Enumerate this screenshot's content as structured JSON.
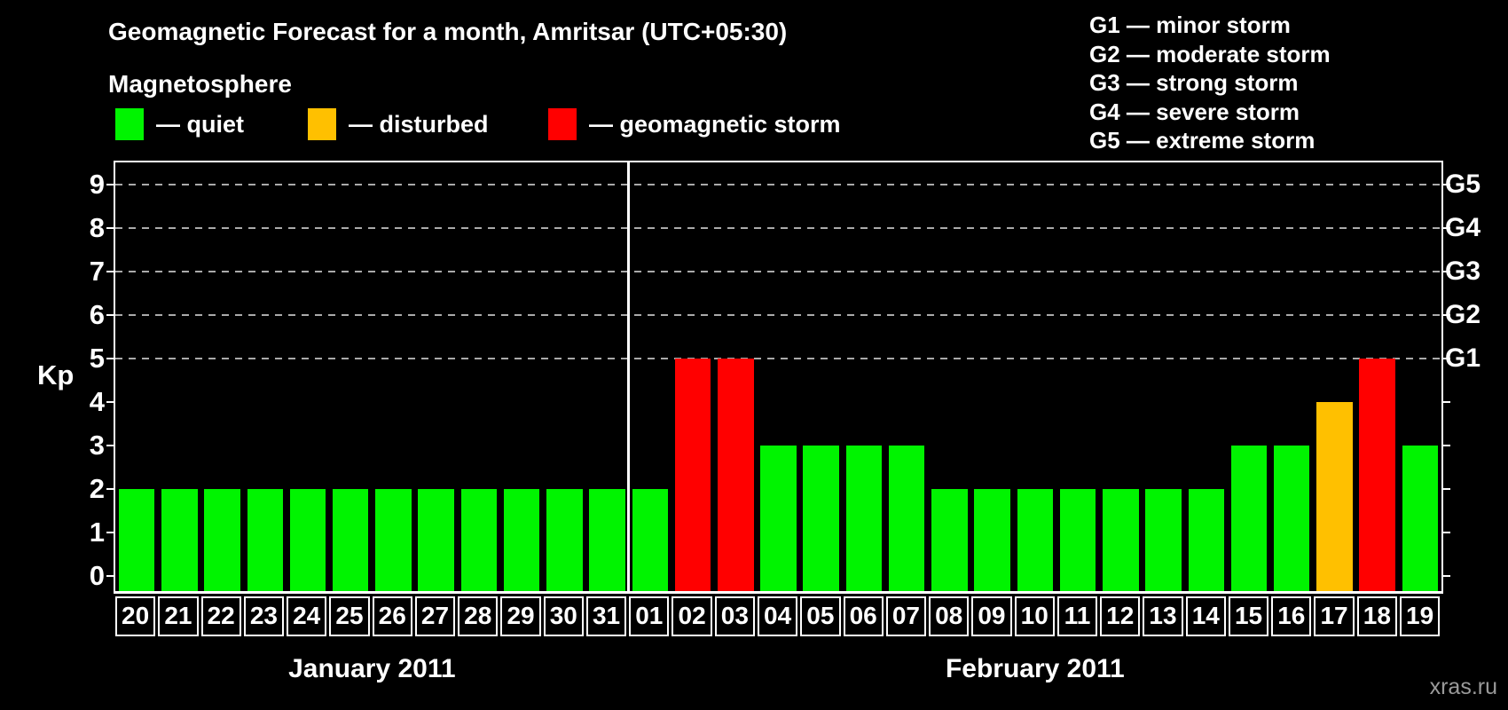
{
  "title": "Geomagnetic Forecast for a month, Amritsar (UTC+05:30)",
  "legend": {
    "heading": "Magnetosphere",
    "items": [
      {
        "key": "quiet",
        "label": "— quiet",
        "color": "#00f400"
      },
      {
        "key": "disturbed",
        "label": "— disturbed",
        "color": "#ffc000"
      },
      {
        "key": "storm",
        "label": "— geomagnetic storm",
        "color": "#ff0000"
      }
    ]
  },
  "g_scale_legend": [
    "G1 — minor storm",
    "G2 — moderate storm",
    "G3 — strong storm",
    "G4 — severe storm",
    "G5 — extreme storm"
  ],
  "watermark": "xras.ru",
  "chart_data": {
    "type": "bar",
    "title": "Geomagnetic Forecast for a month, Amritsar (UTC+05:30)",
    "ylabel": "Kp",
    "ylim": [
      -0.35,
      9.55
    ],
    "y_ticks": [
      0,
      1,
      2,
      3,
      4,
      5,
      6,
      7,
      8,
      9
    ],
    "gridlines_at": [
      5,
      6,
      7,
      8,
      9
    ],
    "grid": "dashed",
    "legend_position": "top",
    "right_axis": [
      {
        "kp": 5,
        "label": "G1"
      },
      {
        "kp": 6,
        "label": "G2"
      },
      {
        "kp": 7,
        "label": "G3"
      },
      {
        "kp": 8,
        "label": "G4"
      },
      {
        "kp": 9,
        "label": "G5"
      }
    ],
    "status_colors": {
      "quiet": "#00f400",
      "disturbed": "#ffc000",
      "storm": "#ff0000"
    },
    "months": [
      {
        "label": "January 2011",
        "days": [
          "20",
          "21",
          "22",
          "23",
          "24",
          "25",
          "26",
          "27",
          "28",
          "29",
          "30",
          "31"
        ],
        "values": [
          2,
          2,
          2,
          2,
          2,
          2,
          2,
          2,
          2,
          2,
          2,
          2
        ],
        "statuses": [
          "quiet",
          "quiet",
          "quiet",
          "quiet",
          "quiet",
          "quiet",
          "quiet",
          "quiet",
          "quiet",
          "quiet",
          "quiet",
          "quiet"
        ]
      },
      {
        "label": "February 2011",
        "days": [
          "01",
          "02",
          "03",
          "04",
          "05",
          "06",
          "07",
          "08",
          "09",
          "10",
          "11",
          "12",
          "13",
          "14",
          "15",
          "16",
          "17",
          "18",
          "19"
        ],
        "values": [
          2,
          5,
          5,
          3,
          3,
          3,
          3,
          2,
          2,
          2,
          2,
          2,
          2,
          2,
          3,
          3,
          4,
          5,
          3
        ],
        "statuses": [
          "quiet",
          "storm",
          "storm",
          "quiet",
          "quiet",
          "quiet",
          "quiet",
          "quiet",
          "quiet",
          "quiet",
          "quiet",
          "quiet",
          "quiet",
          "quiet",
          "quiet",
          "quiet",
          "disturbed",
          "storm",
          "quiet"
        ]
      }
    ]
  }
}
